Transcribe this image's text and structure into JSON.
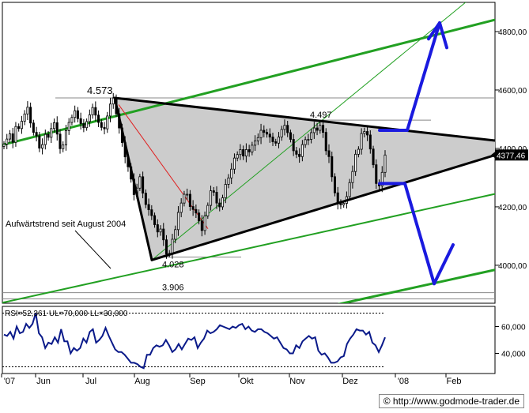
{
  "chart_data": [
    {
      "type": "candlestick",
      "title": "",
      "ylim": [
        3870,
        4900
      ],
      "y_ticks": [
        {
          "value": 4000,
          "label": "4000,00"
        },
        {
          "value": 4200,
          "label": "4200,00"
        },
        {
          "value": 4400,
          "label": "4400,00"
        },
        {
          "value": 4600,
          "label": "4600,00"
        },
        {
          "value": 4800,
          "label": "4800,00"
        }
      ],
      "x_ticks": [
        "'07",
        "Jun",
        "Jul",
        "Aug",
        "Sep",
        "Okt",
        "Nov",
        "Dez",
        "'08",
        "Feb"
      ],
      "last_price_label": "4377,46",
      "last_price": 4377.46,
      "annotations": [
        {
          "text": "4.573",
          "value": 4573
        },
        {
          "text": "4.497",
          "value": 4497
        },
        {
          "text": "4.028",
          "value": 4028
        },
        {
          "text": "3.906",
          "value": 3906
        },
        {
          "text": "Aufwärtstrend seit August 2004"
        }
      ],
      "colors": {
        "trend": "#22a022",
        "triangle_fill": "#cccccc",
        "triangle_edge": "#000000",
        "projection": "#1a1adf",
        "red_line": "#e02020",
        "price": "#000000"
      },
      "grid": false,
      "close_series": [
        4415,
        4432,
        4450,
        4421,
        4475,
        4468,
        4493,
        4518,
        4541,
        4487,
        4455,
        4443,
        4401,
        4413,
        4448,
        4438,
        4468,
        4488,
        4449,
        4399,
        4412,
        4461,
        4489,
        4506,
        4529,
        4502,
        4485,
        4471,
        4492,
        4515,
        4540,
        4514,
        4489,
        4472,
        4467,
        4511,
        4552,
        4573,
        4519,
        4470,
        4420,
        4371,
        4337,
        4295,
        4242,
        4264,
        4303,
        4247,
        4208,
        4190,
        4170,
        4139,
        4114,
        4124,
        4087,
        4038,
        4041,
        4089,
        4122,
        4181,
        4213,
        4243,
        4243,
        4201,
        4191,
        4179,
        4152,
        4119,
        4169,
        4205,
        4255,
        4250,
        4213,
        4200,
        4231,
        4277,
        4299,
        4329,
        4367,
        4379,
        4396,
        4374,
        4396,
        4388,
        4411,
        4426,
        4437,
        4462,
        4455,
        4449,
        4439,
        4423,
        4418,
        4439,
        4465,
        4479,
        4454,
        4431,
        4392,
        4380,
        4372,
        4413,
        4430,
        4431,
        4454,
        4470,
        4462,
        4479,
        4455,
        4392,
        4372,
        4303,
        4248,
        4211,
        4207,
        4212,
        4235,
        4283,
        4321,
        4380,
        4397,
        4451,
        4458,
        4446,
        4398,
        4344,
        4280,
        4272,
        4318,
        4377.46
      ]
    },
    {
      "type": "line",
      "title": "",
      "label": "RSI=52,361 UL=70,000 LL=30,000",
      "ylim": [
        25,
        75
      ],
      "levels": [
        70,
        30
      ],
      "y_ticks": [
        {
          "value": 60,
          "label": "60,000"
        },
        {
          "value": 40,
          "label": "40,000"
        }
      ],
      "color": "#0a1a8a",
      "rsi_series": [
        54,
        53,
        56,
        51,
        60,
        55,
        56,
        62,
        59,
        62,
        70,
        55,
        52,
        44,
        48,
        47,
        52,
        48,
        58,
        49,
        49,
        40,
        44,
        42,
        44,
        51,
        48,
        56,
        58,
        48,
        50,
        53,
        59,
        53,
        48,
        43,
        41,
        41,
        39,
        36,
        33,
        33,
        32,
        30,
        29,
        39,
        39,
        44,
        46,
        45,
        46,
        50,
        46,
        41,
        43,
        47,
        43,
        47,
        51,
        50,
        52,
        44,
        48,
        51,
        57,
        55,
        56,
        58,
        61,
        60,
        59,
        58,
        60,
        59,
        61,
        62,
        58,
        60,
        57,
        56,
        58,
        58,
        56,
        55,
        53,
        51,
        52,
        48,
        44,
        43,
        40,
        40,
        46,
        44,
        49,
        51,
        53,
        51,
        52,
        42,
        39,
        40,
        37,
        33,
        33,
        34,
        37,
        38,
        47,
        51,
        54,
        58,
        57,
        57,
        54,
        56,
        48,
        46,
        41,
        46,
        52
      ]
    }
  ],
  "watermark": "© http://www.godmode-trader.de"
}
